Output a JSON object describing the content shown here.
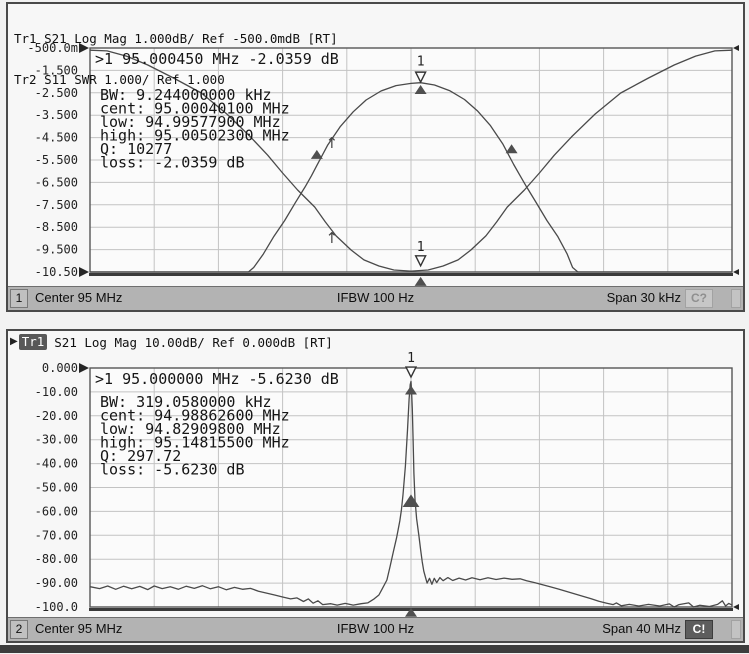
{
  "panels": [
    {
      "header_line1": "Tr1 S21 Log Mag 1.000dB/ Ref -500.0mdB [RT]",
      "header_line2": "Tr2 S11 SWR 1.000/ Ref 1.000",
      "status": {
        "channel": "1",
        "stimulus_left": "Center 95 MHz",
        "stimulus_center": "IFBW 100 Hz",
        "stimulus_right": "Span 30 kHz",
        "badge": "C?"
      }
    },
    {
      "active_trace_pointer": "▶",
      "active_trace": "Tr1",
      "header_rest": "S21 Log Mag 10.00dB/ Ref 0.000dB [RT]",
      "status": {
        "channel": "2",
        "stimulus_left": "Center 95 MHz",
        "stimulus_center": "IFBW 100 Hz",
        "stimulus_right": "Span 40 MHz",
        "badge": "C!"
      }
    }
  ],
  "chart_data": [
    {
      "type": "line",
      "x_unit": "kHz offset from 95 MHz center (Span 30 kHz)",
      "x_range": [
        -15,
        15
      ],
      "x_gridlines": 10,
      "y_gridlines": 10,
      "grid": true,
      "yticks": [
        "-500.0m",
        "-1.500",
        "-2.500",
        "-3.500",
        "-4.500",
        "-5.500",
        "-6.500",
        "-7.500",
        "-8.500",
        "-9.500",
        "-10.50"
      ],
      "readout": ">1  95.000450 MHz -2.0359 dB",
      "info_lines": [
        "  BW:   9.244000000 kHz",
        "cent:  95.00040100 MHz",
        " low:  94.99577900 MHz",
        "high:  95.00502300 MHz",
        "   Q:  10277",
        "loss: -2.0359 dB"
      ],
      "series": [
        {
          "name": "Tr1 S21 Log Mag (dB)",
          "y_range": [
            -10.5,
            -0.5
          ],
          "points": [
            [
              -15,
              -10.5
            ],
            [
              -7.6,
              -10.5
            ],
            [
              -7.35,
              -10.3
            ],
            [
              -6.9,
              -9.7
            ],
            [
              -6.4,
              -8.9
            ],
            [
              -5.9,
              -8.2
            ],
            [
              -5.4,
              -7.4
            ],
            [
              -4.95,
              -6.7
            ],
            [
              -4.65,
              -6.2
            ],
            [
              -4.4,
              -5.75
            ],
            [
              -3.9,
              -4.85
            ],
            [
              -3.3,
              -4.0
            ],
            [
              -2.7,
              -3.35
            ],
            [
              -2.1,
              -2.82
            ],
            [
              -1.4,
              -2.42
            ],
            [
              -0.7,
              -2.18
            ],
            [
              0,
              -2.08
            ],
            [
              0.45,
              -2.05
            ],
            [
              1.1,
              -2.15
            ],
            [
              1.8,
              -2.4
            ],
            [
              2.5,
              -2.8
            ],
            [
              3.1,
              -3.3
            ],
            [
              3.7,
              -3.95
            ],
            [
              4.3,
              -4.8
            ],
            [
              4.8,
              -5.7
            ],
            [
              5.1,
              -6.2
            ],
            [
              5.4,
              -6.7
            ],
            [
              5.85,
              -7.4
            ],
            [
              6.35,
              -8.2
            ],
            [
              6.85,
              -8.9
            ],
            [
              7.3,
              -9.7
            ],
            [
              7.55,
              -10.3
            ],
            [
              7.8,
              -10.5
            ],
            [
              15,
              -10.5
            ]
          ]
        },
        {
          "name": "Tr2 S11 SWR",
          "y_range": [
            1,
            11
          ],
          "points": [
            [
              -15,
              10.9
            ],
            [
              -14.2,
              10.87
            ],
            [
              -13.3,
              10.64
            ],
            [
              -12.3,
              10.24
            ],
            [
              -11.1,
              9.66
            ],
            [
              -9.8,
              8.99
            ],
            [
              -8.6,
              8.05
            ],
            [
              -7.5,
              7.03
            ],
            [
              -6.7,
              6.22
            ],
            [
              -6,
              5.42
            ],
            [
              -5.3,
              4.66
            ],
            [
              -4.5,
              3.9
            ],
            [
              -4,
              3.23
            ],
            [
              -3.5,
              2.61
            ],
            [
              -2.8,
              1.98
            ],
            [
              -2.2,
              1.54
            ],
            [
              -1.5,
              1.27
            ],
            [
              -0.8,
              1.09
            ],
            [
              0,
              1.04
            ],
            [
              0.8,
              1.09
            ],
            [
              1.5,
              1.27
            ],
            [
              2.2,
              1.54
            ],
            [
              2.8,
              1.98
            ],
            [
              3.5,
              2.61
            ],
            [
              4,
              3.23
            ],
            [
              4.5,
              3.9
            ],
            [
              5.3,
              4.66
            ],
            [
              6,
              5.42
            ],
            [
              6.7,
              6.22
            ],
            [
              7.5,
              7.03
            ],
            [
              8.6,
              8.05
            ],
            [
              9.8,
              8.99
            ],
            [
              11.1,
              9.66
            ],
            [
              12.3,
              10.24
            ],
            [
              13.3,
              10.64
            ],
            [
              14.2,
              10.87
            ],
            [
              15,
              10.9
            ]
          ]
        }
      ],
      "markers": [
        {
          "sym": "label",
          "text": "1",
          "series": 0,
          "x": 0.45,
          "y": -1.1
        },
        {
          "sym": "tri-open",
          "series": 0,
          "x": 0.45,
          "y": -1.8
        },
        {
          "sym": "tri-up",
          "series": 0,
          "x": 0.45,
          "y": -2.35
        },
        {
          "sym": "tri-up",
          "series": 0,
          "x": -4.4,
          "y": -5.25
        },
        {
          "sym": "tri-up",
          "series": 0,
          "x": 4.7,
          "y": -5.0
        },
        {
          "sym": "arrow-up",
          "series": 0,
          "x": -3.7,
          "y": -4.75
        },
        {
          "sym": "label",
          "text": "1",
          "series": 1,
          "x": 0.45,
          "y": 2.12
        },
        {
          "sym": "tri-open",
          "series": 1,
          "x": 0.45,
          "y": 1.5
        },
        {
          "sym": "arrow-up",
          "series": 1,
          "x": -3.7,
          "y": 2.52
        },
        {
          "sym": "tri-up",
          "series": 0,
          "x": 0.45,
          "y": -10.92
        }
      ],
      "pointers": [
        {
          "side": "left",
          "row": 0
        },
        {
          "side": "left",
          "row": 10
        },
        {
          "side": "right",
          "row": 0
        },
        {
          "side": "right",
          "row": 10
        }
      ]
    },
    {
      "type": "line",
      "x_unit": "MHz (Center 95 MHz, Span 40 MHz)",
      "x_range": [
        75,
        115
      ],
      "x_gridlines": 10,
      "y_gridlines": 10,
      "grid": true,
      "yticks": [
        "0.000",
        "-10.00",
        "-20.00",
        "-30.00",
        "-40.00",
        "-50.00",
        "-60.00",
        "-70.00",
        "-80.00",
        "-90.00",
        "-100.0"
      ],
      "readout": ">1  95.000000 MHz -5.6230 dB",
      "info_lines": [
        "  BW:   319.0580000 kHz",
        "cent:  94.98862600 MHz",
        " low:  94.82909800 MHz",
        "high:  95.14815500 MHz",
        "   Q:  297.72",
        "loss: -5.6230 dB"
      ],
      "series": [
        {
          "name": "Tr1 S21 Log Mag (dB)",
          "y_range": [
            -100,
            0
          ],
          "points": [
            [
              75,
              -91.5
            ],
            [
              75.6,
              -92.3
            ],
            [
              76.1,
              -91.2
            ],
            [
              76.6,
              -92.6
            ],
            [
              77.1,
              -91.3
            ],
            [
              77.6,
              -92.4
            ],
            [
              78.1,
              -91.4
            ],
            [
              78.6,
              -92.7
            ],
            [
              79,
              -91.2
            ],
            [
              79.5,
              -92.3
            ],
            [
              80,
              -91.5
            ],
            [
              80.5,
              -92.6
            ],
            [
              81,
              -91.3
            ],
            [
              81.5,
              -92.2
            ],
            [
              82,
              -91.1
            ],
            [
              82.5,
              -92.4
            ],
            [
              83,
              -91.5
            ],
            [
              83.5,
              -92.8
            ],
            [
              84,
              -91.8
            ],
            [
              84.5,
              -92.6
            ],
            [
              85,
              -92.2
            ],
            [
              85.5,
              -93.4
            ],
            [
              86,
              -94.2
            ],
            [
              86.5,
              -95
            ],
            [
              87,
              -95.8
            ],
            [
              87.5,
              -96.6
            ],
            [
              87.9,
              -96.2
            ],
            [
              88.3,
              -97.7
            ],
            [
              88.6,
              -96.6
            ],
            [
              88.9,
              -98.4
            ],
            [
              89.2,
              -97.4
            ],
            [
              89.5,
              -99
            ],
            [
              90,
              -98.6
            ],
            [
              90.4,
              -99.2
            ],
            [
              90.9,
              -98.5
            ],
            [
              91.4,
              -99.2
            ],
            [
              91.9,
              -98.6
            ],
            [
              92.3,
              -98.3
            ],
            [
              92.7,
              -96.6
            ],
            [
              93,
              -95
            ],
            [
              93.2,
              -92.5
            ],
            [
              93.5,
              -88.7
            ],
            [
              93.7,
              -83
            ],
            [
              93.9,
              -77
            ],
            [
              94.1,
              -71
            ],
            [
              94.3,
              -64
            ],
            [
              94.4,
              -59.4
            ],
            [
              94.5,
              -53
            ],
            [
              94.65,
              -41
            ],
            [
              94.78,
              -26
            ],
            [
              94.88,
              -13
            ],
            [
              94.95,
              -7
            ],
            [
              95,
              -5.62
            ],
            [
              95.03,
              -9
            ],
            [
              95.08,
              -17
            ],
            [
              95.13,
              -30
            ],
            [
              95.18,
              -44
            ],
            [
              95.25,
              -55
            ],
            [
              95.35,
              -63
            ],
            [
              95.5,
              -70.5
            ],
            [
              95.6,
              -76
            ],
            [
              95.7,
              -81
            ],
            [
              95.8,
              -85
            ],
            [
              95.9,
              -87.5
            ],
            [
              96,
              -90
            ],
            [
              96.15,
              -88
            ],
            [
              96.3,
              -90.5
            ],
            [
              96.45,
              -88
            ],
            [
              96.6,
              -89.8
            ],
            [
              96.8,
              -87.7
            ],
            [
              97,
              -89
            ],
            [
              97.3,
              -87.7
            ],
            [
              97.6,
              -88.9
            ],
            [
              98,
              -87.9
            ],
            [
              98.4,
              -88.7
            ],
            [
              98.8,
              -87.8
            ],
            [
              99.3,
              -88.6
            ],
            [
              99.8,
              -87.8
            ],
            [
              100.3,
              -88.5
            ],
            [
              100.8,
              -87.9
            ],
            [
              101.3,
              -88.4
            ],
            [
              101.8,
              -88.2
            ],
            [
              102.2,
              -89
            ],
            [
              102.7,
              -89.8
            ],
            [
              103.2,
              -90.7
            ],
            [
              103.7,
              -91.6
            ],
            [
              104.2,
              -92.5
            ],
            [
              104.7,
              -93.5
            ],
            [
              105.2,
              -94.5
            ],
            [
              105.7,
              -95.5
            ],
            [
              106.2,
              -96.5
            ],
            [
              106.7,
              -97.6
            ],
            [
              107.2,
              -98.4
            ],
            [
              107.6,
              -99
            ],
            [
              107.8,
              -98.3
            ],
            [
              108.1,
              -99.5
            ],
            [
              108.6,
              -98.9
            ],
            [
              109.2,
              -99.6
            ],
            [
              109.8,
              -98.9
            ],
            [
              110.5,
              -99.6
            ],
            [
              111.1,
              -98.7
            ],
            [
              111.4,
              -100
            ],
            [
              111.7,
              -99
            ],
            [
              112.3,
              -98.3
            ],
            [
              112.6,
              -100
            ],
            [
              113,
              -99.3
            ],
            [
              113.6,
              -99.8
            ],
            [
              114.1,
              -98.9
            ],
            [
              114.4,
              -97.4
            ],
            [
              114.6,
              -99.6
            ],
            [
              114.8,
              -98.5
            ],
            [
              115,
              -99.2
            ]
          ]
        }
      ],
      "markers": [
        {
          "sym": "label",
          "text": "1",
          "series": 0,
          "x": 95,
          "y": 4.2
        },
        {
          "sym": "tri-open",
          "series": 0,
          "x": 95,
          "y": -1.7
        },
        {
          "sym": "tri-up",
          "series": 0,
          "x": 95,
          "y": -9.2
        },
        {
          "sym": "tri-up",
          "series": 0,
          "x": 95,
          "y": -55.5,
          "size": 1.4
        },
        {
          "sym": "tri-up",
          "series": 0,
          "x": 95,
          "y": -102.2
        }
      ],
      "pointers": [
        {
          "side": "left",
          "row": 0
        },
        {
          "side": "right",
          "row": 10
        }
      ]
    }
  ]
}
